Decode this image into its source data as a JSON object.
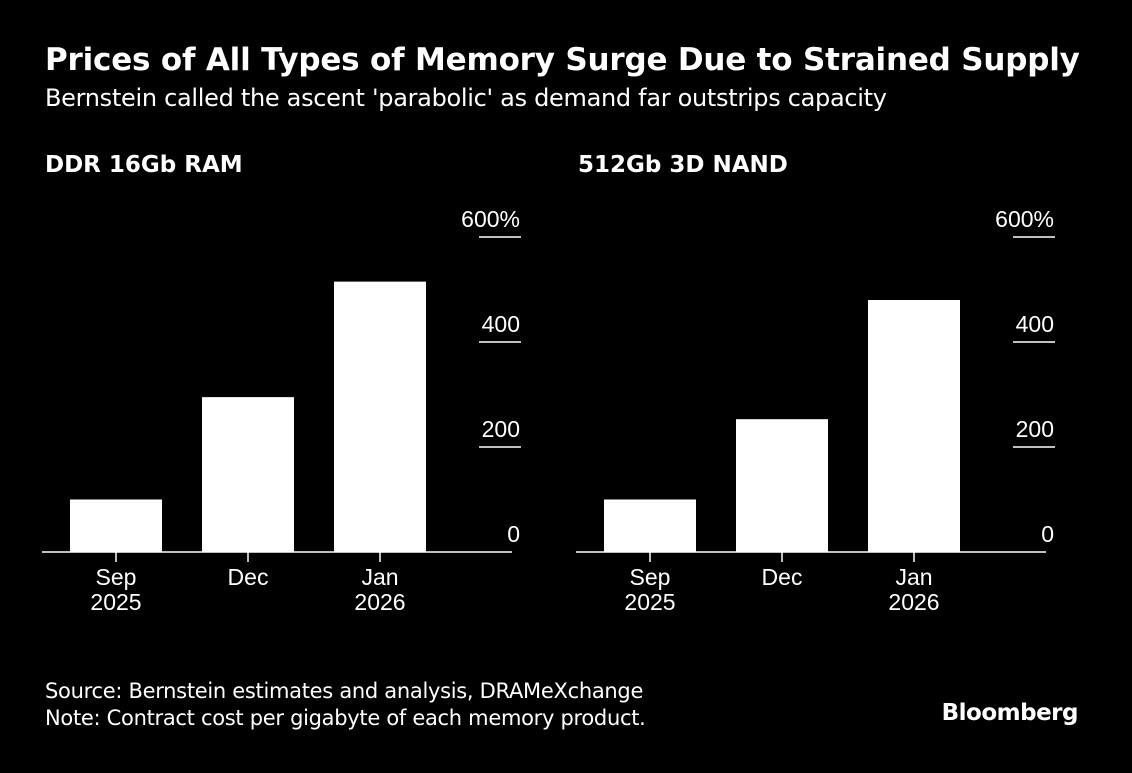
{
  "header": {
    "title": "Prices of All Types of Memory Surge Due to Strained Supply",
    "subtitle": "Bernstein called the ascent 'parabolic' as demand far outstrips capacity"
  },
  "chart_data": [
    {
      "type": "bar",
      "title": "DDR 16Gb RAM",
      "categories": [
        [
          "Sep",
          "2025"
        ],
        [
          "Dec",
          ""
        ],
        [
          "Jan",
          "2026"
        ]
      ],
      "values": [
        100,
        295,
        515
      ],
      "ylim": [
        0,
        600
      ],
      "yticks": [
        "600%",
        "400",
        "200",
        "0"
      ],
      "ytick_values": [
        600,
        400,
        200,
        0
      ],
      "xlabel": "",
      "ylabel": "",
      "grid": false
    },
    {
      "type": "bar",
      "title": "512Gb 3D NAND",
      "categories": [
        [
          "Sep",
          "2025"
        ],
        [
          "Dec",
          ""
        ],
        [
          "Jan",
          "2026"
        ]
      ],
      "values": [
        100,
        253,
        480
      ],
      "ylim": [
        0,
        600
      ],
      "yticks": [
        "600%",
        "400",
        "200",
        "0"
      ],
      "ytick_values": [
        600,
        400,
        200,
        0
      ],
      "xlabel": "",
      "ylabel": "",
      "grid": false
    }
  ],
  "footer": {
    "source": "Source: Bernstein estimates and analysis, DRAMeXchange",
    "note": "Note: Contract cost per gigabyte of each memory product."
  },
  "brand": "Bloomberg",
  "colors": {
    "background": "#000000",
    "foreground": "#ffffff"
  }
}
